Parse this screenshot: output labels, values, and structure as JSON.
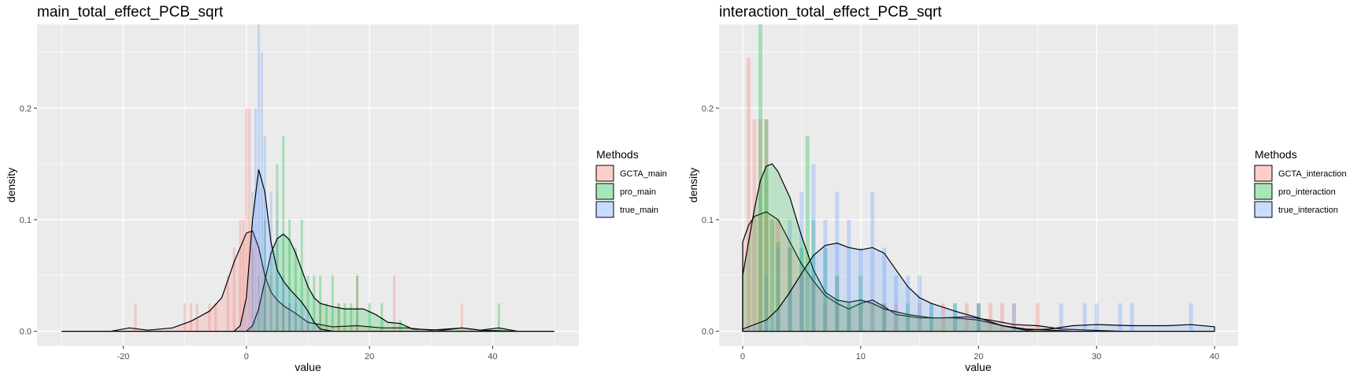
{
  "chart_data": [
    {
      "type": "histogram",
      "title": "main_total_effect_PCB_sqrt",
      "xlabel": "value",
      "ylabel": "density",
      "xlim": [
        -34,
        54
      ],
      "ylim": [
        -0.013,
        0.275
      ],
      "x_ticks": [
        -20,
        0,
        20,
        40
      ],
      "y_ticks": [
        0.0,
        0.1,
        0.2
      ],
      "x_tick_labels": [
        "-20",
        "0",
        "20",
        "40"
      ],
      "y_tick_labels": [
        "0.0",
        "0.1",
        "0.2"
      ],
      "grid": true,
      "legend_position": "right",
      "legend_title": "Methods",
      "series": [
        {
          "name": "GCTA_main",
          "color": "#F8766D",
          "bars": [
            [
              -18,
              0.025
            ],
            [
              -10,
              0.025
            ],
            [
              -9,
              0.025
            ],
            [
              -8,
              0.025
            ],
            [
              -6,
              0.025
            ],
            [
              -5,
              0.025
            ],
            [
              -3,
              0.05
            ],
            [
              -2,
              0.075
            ],
            [
              -1,
              0.1
            ],
            [
              -0.5,
              0.1
            ],
            [
              0,
              0.2
            ],
            [
              0.5,
              0.2
            ],
            [
              1,
              0.075
            ],
            [
              2,
              0.05
            ],
            [
              3,
              0.05
            ],
            [
              4,
              0.05
            ],
            [
              5,
              0.025
            ],
            [
              6,
              0.025
            ],
            [
              7,
              0.025
            ],
            [
              12,
              0.025
            ],
            [
              15,
              0.025
            ],
            [
              18,
              0.05
            ],
            [
              24,
              0.05
            ],
            [
              35,
              0.025
            ]
          ],
          "density": [
            [
              -30,
              0
            ],
            [
              -22,
              0
            ],
            [
              -19,
              0.003
            ],
            [
              -16,
              0.001
            ],
            [
              -12,
              0.003
            ],
            [
              -9,
              0.009
            ],
            [
              -6,
              0.018
            ],
            [
              -4,
              0.03
            ],
            [
              -2,
              0.062
            ],
            [
              0,
              0.088
            ],
            [
              1,
              0.09
            ],
            [
              2,
              0.075
            ],
            [
              3,
              0.05
            ],
            [
              4,
              0.035
            ],
            [
              5,
              0.028
            ],
            [
              6,
              0.023
            ],
            [
              8,
              0.016
            ],
            [
              10,
              0.008
            ],
            [
              14,
              0.004
            ],
            [
              18,
              0.005
            ],
            [
              22,
              0.003
            ],
            [
              26,
              0.003
            ],
            [
              30,
              0.001
            ],
            [
              35,
              0.003
            ],
            [
              38,
              0.001
            ],
            [
              44,
              0
            ],
            [
              50,
              0
            ]
          ]
        },
        {
          "name": "pro_main",
          "color": "#00BA38",
          "bars": [
            [
              3,
              0.1
            ],
            [
              5,
              0.15
            ],
            [
              6,
              0.175
            ],
            [
              7,
              0.1
            ],
            [
              8,
              0.075
            ],
            [
              9,
              0.1
            ],
            [
              10,
              0.05
            ],
            [
              11,
              0.05
            ],
            [
              12,
              0.05
            ],
            [
              13,
              0.025
            ],
            [
              14,
              0.05
            ],
            [
              15,
              0.025
            ],
            [
              16,
              0.025
            ],
            [
              17,
              0.025
            ],
            [
              18,
              0.05
            ],
            [
              20,
              0.025
            ],
            [
              22,
              0.025
            ],
            [
              25,
              0.01
            ],
            [
              41,
              0.025
            ]
          ],
          "density": [
            [
              -30,
              0
            ],
            [
              0,
              0
            ],
            [
              1,
              0.005
            ],
            [
              2,
              0.02
            ],
            [
              3,
              0.045
            ],
            [
              4,
              0.07
            ],
            [
              5,
              0.083
            ],
            [
              6,
              0.087
            ],
            [
              7,
              0.082
            ],
            [
              8,
              0.07
            ],
            [
              9,
              0.055
            ],
            [
              10,
              0.04
            ],
            [
              11,
              0.03
            ],
            [
              12,
              0.025
            ],
            [
              14,
              0.022
            ],
            [
              16,
              0.02
            ],
            [
              19,
              0.02
            ],
            [
              21,
              0.015
            ],
            [
              23,
              0.008
            ],
            [
              25,
              0.007
            ],
            [
              27,
              0.002
            ],
            [
              32,
              0.001
            ],
            [
              35,
              0.003
            ],
            [
              38,
              0.001
            ],
            [
              41,
              0.003
            ],
            [
              44,
              0
            ],
            [
              50,
              0
            ]
          ]
        },
        {
          "name": "true_main",
          "color": "#619CFF",
          "bars": [
            [
              1,
              0.125
            ],
            [
              1.5,
              0.2
            ],
            [
              2,
              0.275
            ],
            [
              2.5,
              0.25
            ],
            [
              3,
              0.175
            ],
            [
              4,
              0.125
            ],
            [
              5,
              0.1
            ],
            [
              6,
              0.05
            ],
            [
              7,
              0.025
            ],
            [
              8,
              0.025
            ],
            [
              9,
              0.01
            ],
            [
              10,
              0.01
            ]
          ],
          "density": [
            [
              -30,
              0
            ],
            [
              -2,
              0
            ],
            [
              -1,
              0.005
            ],
            [
              0,
              0.03
            ],
            [
              1,
              0.1
            ],
            [
              2,
              0.145
            ],
            [
              3,
              0.125
            ],
            [
              4,
              0.08
            ],
            [
              5,
              0.055
            ],
            [
              6,
              0.045
            ],
            [
              7,
              0.038
            ],
            [
              8,
              0.032
            ],
            [
              9,
              0.026
            ],
            [
              10,
              0.018
            ],
            [
              11,
              0.008
            ],
            [
              12,
              0.002
            ],
            [
              14,
              0
            ],
            [
              50,
              0
            ]
          ]
        }
      ]
    },
    {
      "type": "histogram",
      "title": "interaction_total_effect_PCB_sqrt",
      "xlabel": "value",
      "ylabel": "density",
      "xlim": [
        -2,
        42
      ],
      "ylim": [
        -0.013,
        0.275
      ],
      "x_ticks": [
        0,
        10,
        20,
        30,
        40
      ],
      "y_ticks": [
        0.0,
        0.1,
        0.2
      ],
      "x_tick_labels": [
        "0",
        "10",
        "20",
        "30",
        "40"
      ],
      "y_tick_labels": [
        "0.0",
        "0.1",
        "0.2"
      ],
      "grid": true,
      "legend_position": "right",
      "legend_title": "Methods",
      "series": [
        {
          "name": "GCTA_interaction",
          "color": "#F8766D",
          "bars": [
            [
              0.5,
              0.245
            ],
            [
              1,
              0.19
            ],
            [
              1.5,
              0.19
            ],
            [
              2,
              0.19
            ],
            [
              3,
              0.1
            ],
            [
              4,
              0.075
            ],
            [
              5,
              0.05
            ],
            [
              6,
              0.05
            ],
            [
              7,
              0.025
            ],
            [
              8,
              0.05
            ],
            [
              9,
              0.025
            ],
            [
              10,
              0.025
            ],
            [
              11,
              0.025
            ],
            [
              12,
              0.025
            ],
            [
              13,
              0.025
            ],
            [
              15,
              0.025
            ],
            [
              17,
              0.025
            ],
            [
              19,
              0.025
            ],
            [
              20,
              0.025
            ],
            [
              21,
              0.025
            ],
            [
              22,
              0.025
            ],
            [
              23,
              0.025
            ],
            [
              25,
              0.025
            ]
          ],
          "density": [
            [
              0,
              0.08
            ],
            [
              0.5,
              0.095
            ],
            [
              1,
              0.103
            ],
            [
              2,
              0.107
            ],
            [
              3,
              0.1
            ],
            [
              4,
              0.08
            ],
            [
              5,
              0.06
            ],
            [
              6,
              0.045
            ],
            [
              7,
              0.032
            ],
            [
              8,
              0.025
            ],
            [
              9,
              0.02
            ],
            [
              10,
              0.025
            ],
            [
              11,
              0.028
            ],
            [
              12,
              0.022
            ],
            [
              13,
              0.015
            ],
            [
              15,
              0.012
            ],
            [
              17,
              0.012
            ],
            [
              19,
              0.013
            ],
            [
              21,
              0.01
            ],
            [
              23,
              0.006
            ],
            [
              25,
              0.005
            ],
            [
              27,
              0.002
            ],
            [
              32,
              0
            ],
            [
              40,
              0
            ]
          ]
        },
        {
          "name": "pro_interaction",
          "color": "#00BA38",
          "bars": [
            [
              1.5,
              0.275
            ],
            [
              2,
              0.19
            ],
            [
              2.5,
              0.1
            ],
            [
              3,
              0.08
            ],
            [
              4,
              0.075
            ],
            [
              5,
              0.075
            ],
            [
              5.5,
              0.175
            ],
            [
              6,
              0.1
            ],
            [
              7,
              0.075
            ],
            [
              8,
              0.05
            ],
            [
              9,
              0.025
            ],
            [
              10,
              0.05
            ],
            [
              12,
              0.025
            ],
            [
              14,
              0.025
            ],
            [
              16,
              0.025
            ],
            [
              18,
              0.025
            ],
            [
              20,
              0.025
            ]
          ],
          "density": [
            [
              0,
              0.05
            ],
            [
              0.5,
              0.08
            ],
            [
              1,
              0.11
            ],
            [
              1.5,
              0.135
            ],
            [
              2,
              0.148
            ],
            [
              2.5,
              0.15
            ],
            [
              3,
              0.143
            ],
            [
              4,
              0.12
            ],
            [
              5,
              0.085
            ],
            [
              6,
              0.055
            ],
            [
              7,
              0.035
            ],
            [
              8,
              0.028
            ],
            [
              9,
              0.026
            ],
            [
              10,
              0.028
            ],
            [
              11,
              0.025
            ],
            [
              12,
              0.02
            ],
            [
              14,
              0.015
            ],
            [
              16,
              0.012
            ],
            [
              18,
              0.012
            ],
            [
              20,
              0.01
            ],
            [
              22,
              0.005
            ],
            [
              24,
              0.002
            ],
            [
              28,
              0
            ],
            [
              40,
              0
            ]
          ]
        },
        {
          "name": "true_interaction",
          "color": "#619CFF",
          "bars": [
            [
              2,
              0.05
            ],
            [
              3,
              0.075
            ],
            [
              4,
              0.1
            ],
            [
              5,
              0.125
            ],
            [
              6,
              0.15
            ],
            [
              7,
              0.1
            ],
            [
              8,
              0.125
            ],
            [
              9,
              0.1
            ],
            [
              10,
              0.075
            ],
            [
              11,
              0.125
            ],
            [
              12,
              0.075
            ],
            [
              13,
              0.05
            ],
            [
              14,
              0.05
            ],
            [
              15,
              0.05
            ],
            [
              16,
              0.025
            ],
            [
              18,
              0.025
            ],
            [
              20,
              0.025
            ],
            [
              23,
              0.025
            ],
            [
              27,
              0.025
            ],
            [
              29,
              0.025
            ],
            [
              30,
              0.025
            ],
            [
              32,
              0.025
            ],
            [
              33,
              0.025
            ],
            [
              38,
              0.025
            ]
          ],
          "density": [
            [
              0,
              0.002
            ],
            [
              2,
              0.01
            ],
            [
              3,
              0.02
            ],
            [
              4,
              0.035
            ],
            [
              5,
              0.052
            ],
            [
              6,
              0.068
            ],
            [
              7,
              0.077
            ],
            [
              8,
              0.079
            ],
            [
              9,
              0.075
            ],
            [
              10,
              0.073
            ],
            [
              11,
              0.075
            ],
            [
              12,
              0.07
            ],
            [
              13,
              0.055
            ],
            [
              14,
              0.04
            ],
            [
              15,
              0.03
            ],
            [
              16,
              0.025
            ],
            [
              18,
              0.018
            ],
            [
              20,
              0.012
            ],
            [
              22,
              0.005
            ],
            [
              24,
              0.001
            ],
            [
              26,
              0.002
            ],
            [
              28,
              0.005
            ],
            [
              30,
              0.006
            ],
            [
              33,
              0.005
            ],
            [
              36,
              0.005
            ],
            [
              38,
              0.006
            ],
            [
              40,
              0.004
            ]
          ]
        }
      ]
    }
  ]
}
